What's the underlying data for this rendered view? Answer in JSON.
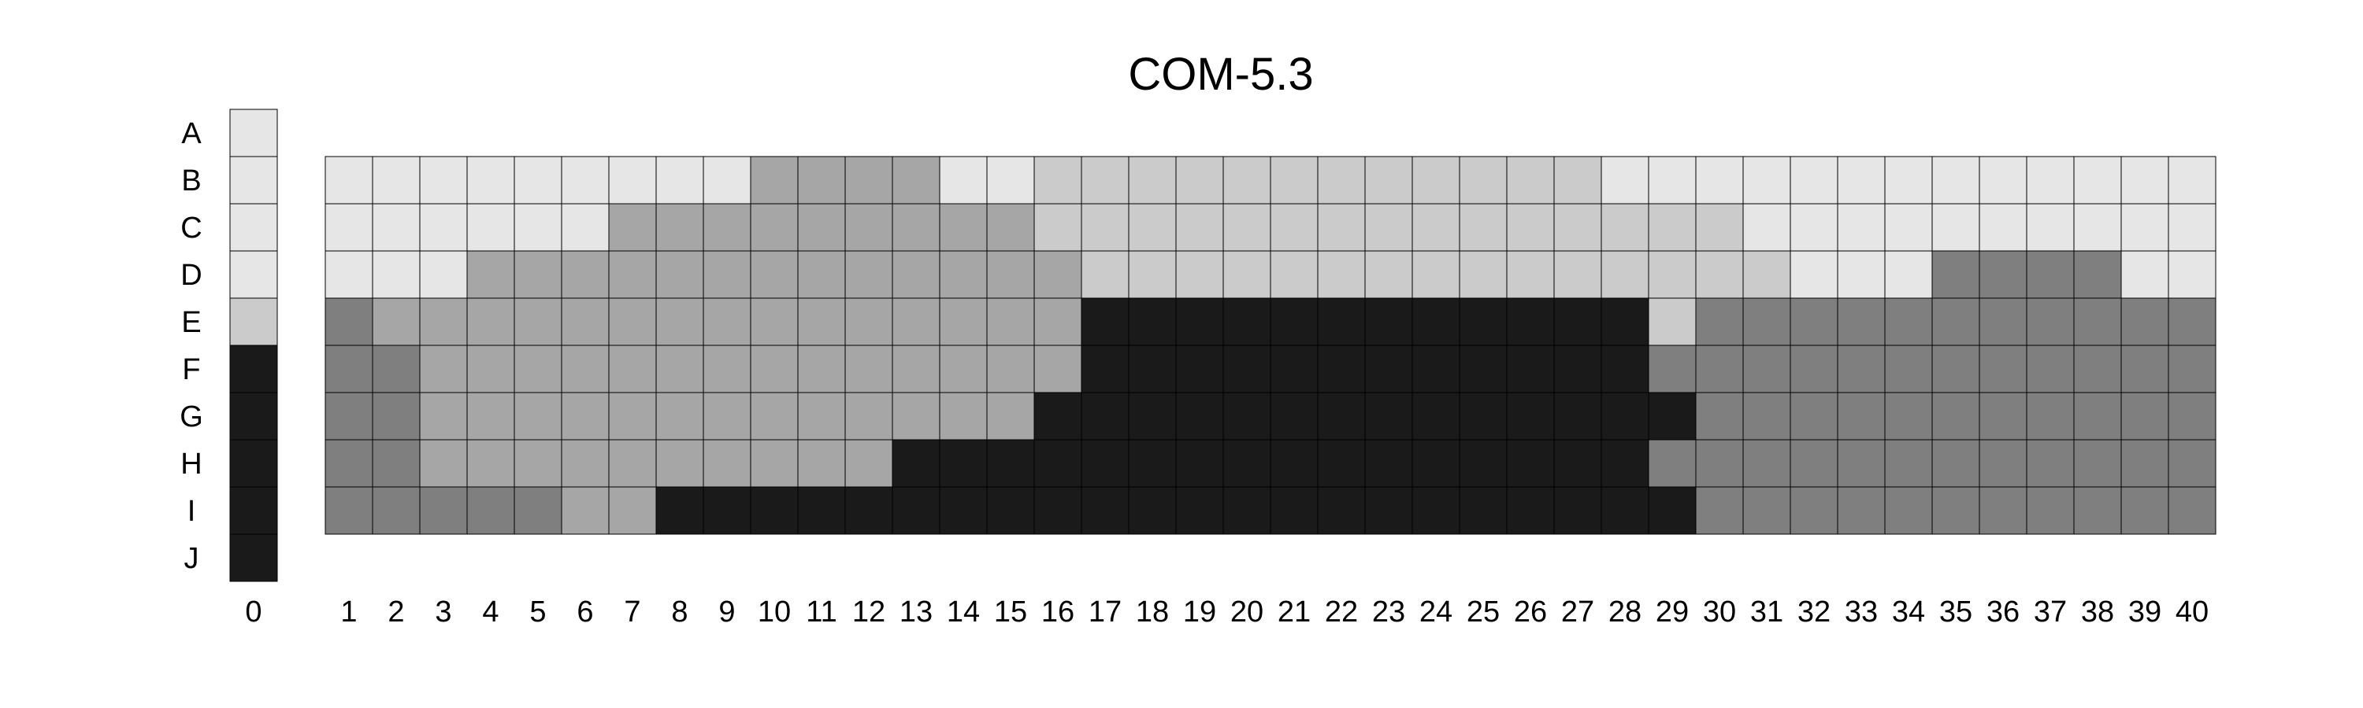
{
  "chart_data": {
    "type": "heatmap",
    "title": "COM-5.3",
    "row_labels": [
      "A",
      "B",
      "C",
      "D",
      "E",
      "F",
      "G",
      "H",
      "I",
      "J"
    ],
    "reference_column": {
      "label": "0",
      "values": [
        1,
        1,
        1,
        1,
        2,
        5,
        5,
        5,
        5,
        5
      ]
    },
    "main_columns": [
      "1",
      "2",
      "3",
      "4",
      "5",
      "6",
      "7",
      "8",
      "9",
      "10",
      "11",
      "12",
      "13",
      "14",
      "15",
      "16",
      "17",
      "18",
      "19",
      "20",
      "21",
      "22",
      "23",
      "24",
      "25",
      "26",
      "27",
      "28",
      "29",
      "30",
      "31",
      "32",
      "33",
      "34",
      "35",
      "36",
      "37",
      "38",
      "39",
      "40"
    ],
    "main_rows": [
      "B",
      "C",
      "D",
      "E",
      "F",
      "G",
      "H",
      "I"
    ],
    "values": [
      [
        1,
        1,
        1,
        1,
        1,
        1,
        1,
        1,
        1,
        3,
        3,
        3,
        3,
        1,
        1,
        2,
        2,
        2,
        2,
        2,
        2,
        2,
        2,
        2,
        2,
        2,
        2,
        1,
        1,
        1,
        1,
        1,
        1,
        1,
        1,
        1,
        1,
        1,
        1,
        1
      ],
      [
        1,
        1,
        1,
        1,
        1,
        1,
        3,
        3,
        3,
        3,
        3,
        3,
        3,
        3,
        3,
        2,
        2,
        2,
        2,
        2,
        2,
        2,
        2,
        2,
        2,
        2,
        2,
        2,
        2,
        2,
        1,
        1,
        1,
        1,
        1,
        1,
        1,
        1,
        1,
        1
      ],
      [
        1,
        1,
        1,
        3,
        3,
        3,
        3,
        3,
        3,
        3,
        3,
        3,
        3,
        3,
        3,
        3,
        2,
        2,
        2,
        2,
        2,
        2,
        2,
        2,
        2,
        2,
        2,
        2,
        2,
        2,
        2,
        1,
        1,
        1,
        4,
        4,
        4,
        4,
        1,
        1
      ],
      [
        4,
        3,
        3,
        3,
        3,
        3,
        3,
        3,
        3,
        3,
        3,
        3,
        3,
        3,
        3,
        3,
        5,
        5,
        5,
        5,
        5,
        5,
        5,
        5,
        5,
        5,
        5,
        5,
        2,
        4,
        4,
        4,
        4,
        4,
        4,
        4,
        4,
        4,
        4,
        4
      ],
      [
        4,
        4,
        3,
        3,
        3,
        3,
        3,
        3,
        3,
        3,
        3,
        3,
        3,
        3,
        3,
        3,
        5,
        5,
        5,
        5,
        5,
        5,
        5,
        5,
        5,
        5,
        5,
        5,
        4,
        4,
        4,
        4,
        4,
        4,
        4,
        4,
        4,
        4,
        4,
        4
      ],
      [
        4,
        4,
        3,
        3,
        3,
        3,
        3,
        3,
        3,
        3,
        3,
        3,
        3,
        3,
        3,
        5,
        5,
        5,
        5,
        5,
        5,
        5,
        5,
        5,
        5,
        5,
        5,
        5,
        5,
        4,
        4,
        4,
        4,
        4,
        4,
        4,
        4,
        4,
        4,
        4
      ],
      [
        4,
        4,
        3,
        3,
        3,
        3,
        3,
        3,
        3,
        3,
        3,
        3,
        5,
        5,
        5,
        5,
        5,
        5,
        5,
        5,
        5,
        5,
        5,
        5,
        5,
        5,
        5,
        5,
        4,
        4,
        4,
        4,
        4,
        4,
        4,
        4,
        4,
        4,
        4,
        4
      ],
      [
        4,
        4,
        4,
        4,
        4,
        3,
        3,
        5,
        5,
        5,
        5,
        5,
        5,
        5,
        5,
        5,
        5,
        5,
        5,
        5,
        5,
        5,
        5,
        5,
        5,
        5,
        5,
        5,
        5,
        4,
        4,
        4,
        4,
        4,
        4,
        4,
        4,
        4,
        4,
        4
      ]
    ],
    "level_colors": {
      "1": "#e6e6e6",
      "2": "#cbcbcb",
      "3": "#a6a6a6",
      "4": "#7f7f7f",
      "5": "#1a1a1a"
    },
    "grid": true,
    "legend": "none"
  }
}
